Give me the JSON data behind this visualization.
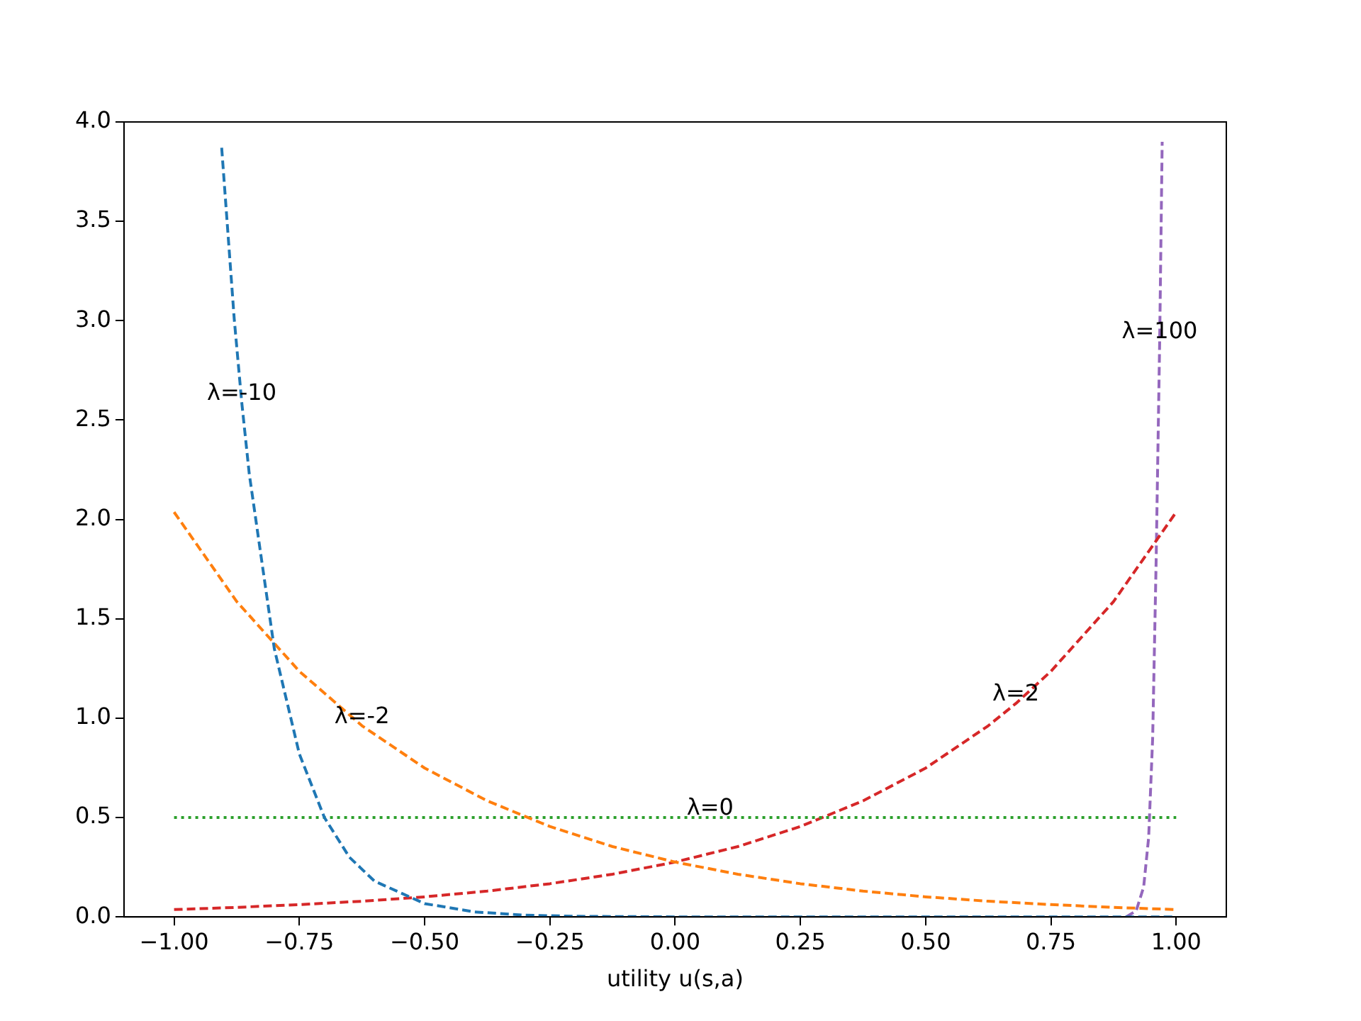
{
  "chart_data": {
    "type": "line",
    "xlabel": "utility u(s,a)",
    "xlim": [
      -1.1,
      1.1
    ],
    "ylim": [
      0,
      4
    ],
    "xticks": [
      {
        "value": -1,
        "label": "−1.00"
      },
      {
        "value": -0.75,
        "label": "−0.75"
      },
      {
        "value": -0.5,
        "label": "−0.50"
      },
      {
        "value": -0.25,
        "label": "−0.25"
      },
      {
        "value": 0,
        "label": "0.00"
      },
      {
        "value": 0.25,
        "label": "0.25"
      },
      {
        "value": 0.5,
        "label": "0.50"
      },
      {
        "value": 0.75,
        "label": "0.75"
      },
      {
        "value": 1,
        "label": "1.00"
      }
    ],
    "yticks": [
      {
        "value": 0,
        "label": "0.0"
      },
      0.5,
      {
        "value": 1,
        "label": "1.0"
      },
      1.5,
      {
        "value": 2,
        "label": "2.0"
      },
      2.5,
      {
        "value": 3,
        "label": "3.0"
      },
      3.5,
      {
        "value": 4,
        "label": "4.0"
      }
    ],
    "grid": false,
    "legend": false,
    "marker": "none",
    "line_style": "dashed",
    "series": [
      {
        "color": "#1f77b4",
        "x": [
          -0.905,
          -0.88,
          -0.865,
          -0.85,
          -0.8,
          -0.75,
          -0.7,
          -0.65,
          -0.6,
          -0.5,
          -0.4,
          -0.3,
          -0.2,
          0,
          0.5,
          1
        ],
        "values": [
          3.87,
          3.01,
          2.59,
          2.23,
          1.35,
          0.82,
          0.5,
          0.3,
          0.18,
          0.067,
          0.025,
          0.009,
          0.003,
          0,
          0,
          0
        ]
      },
      {
        "color": "#ff7f0e",
        "x": [
          -1,
          -0.875,
          -0.75,
          -0.625,
          -0.5,
          -0.375,
          -0.25,
          -0.125,
          0,
          0.125,
          0.25,
          0.375,
          0.5,
          0.625,
          0.75,
          0.875,
          1
        ],
        "values": [
          2.037,
          1.587,
          1.236,
          0.962,
          0.749,
          0.584,
          0.455,
          0.354,
          0.276,
          0.215,
          0.167,
          0.13,
          0.101,
          0.079,
          0.062,
          0.048,
          0.037
        ]
      },
      {
        "color": "#2ca02c",
        "line_style": "dotted",
        "x": [
          -1,
          1
        ],
        "values": [
          0.5,
          0.5
        ]
      },
      {
        "color": "#d62728",
        "x": [
          -1,
          -0.875,
          -0.75,
          -0.625,
          -0.5,
          -0.375,
          -0.25,
          -0.125,
          0,
          0.125,
          0.25,
          0.375,
          0.5,
          0.625,
          0.68,
          0.75,
          0.875,
          1
        ],
        "values": [
          0.037,
          0.048,
          0.062,
          0.079,
          0.101,
          0.13,
          0.167,
          0.215,
          0.276,
          0.354,
          0.455,
          0.584,
          0.749,
          0.962,
          1.074,
          1.236,
          1.587,
          2.037
        ]
      },
      {
        "color": "#9467bd",
        "x": [
          0.9,
          0.92,
          0.935,
          0.945,
          0.953,
          0.96,
          0.967,
          0.972
        ],
        "values": [
          0,
          0.03,
          0.15,
          0.4,
          0.9,
          1.8,
          2.9,
          3.9
        ]
      }
    ],
    "annotations": [
      {
        "text": "λ=-10",
        "x": -0.865,
        "y": 2.59
      },
      {
        "text": "λ=-2",
        "x": -0.625,
        "y": 0.962
      },
      {
        "text": "λ=0",
        "x": 0.07,
        "y": 0.5
      },
      {
        "text": "λ=2",
        "x": 0.68,
        "y": 1.074
      },
      {
        "text": "λ=100",
        "x": 0.967,
        "y": 2.9
      }
    ]
  }
}
